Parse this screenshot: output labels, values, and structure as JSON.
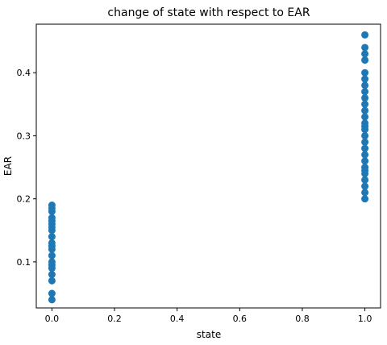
{
  "chart_data": {
    "type": "scatter",
    "title": "change of state with respect to EAR",
    "xlabel": "state",
    "ylabel": "EAR",
    "xlim": [
      -0.05,
      1.05
    ],
    "ylim": [
      0.027,
      0.477
    ],
    "xticks": [
      0.0,
      0.2,
      0.4,
      0.6,
      0.8,
      1.0
    ],
    "xtick_labels": [
      "0.0",
      "0.2",
      "0.4",
      "0.6",
      "0.8",
      "1.0"
    ],
    "yticks": [
      0.1,
      0.2,
      0.3,
      0.4
    ],
    "ytick_labels": [
      "0.1",
      "0.2",
      "0.3",
      "0.4"
    ],
    "grid": false,
    "marker_color": "#1f77b4",
    "series": [
      {
        "x": [
          0,
          0,
          0,
          0,
          0,
          0,
          0,
          0,
          0,
          0,
          0,
          0,
          0,
          0,
          0,
          0,
          0,
          0,
          0,
          0
        ],
        "y": [
          0.04,
          0.05,
          0.07,
          0.08,
          0.09,
          0.1,
          0.11,
          0.12,
          0.13,
          0.14,
          0.15,
          0.16,
          0.17,
          0.18,
          0.19,
          0.155,
          0.125,
          0.095,
          0.165,
          0.185
        ]
      },
      {
        "x": [
          1,
          1,
          1,
          1,
          1,
          1,
          1,
          1,
          1,
          1,
          1,
          1,
          1,
          1,
          1,
          1,
          1,
          1,
          1,
          1,
          1,
          1,
          1,
          1,
          1,
          1,
          1
        ],
        "y": [
          0.2,
          0.21,
          0.22,
          0.23,
          0.24,
          0.25,
          0.26,
          0.27,
          0.28,
          0.29,
          0.3,
          0.31,
          0.32,
          0.33,
          0.34,
          0.35,
          0.36,
          0.37,
          0.38,
          0.39,
          0.4,
          0.42,
          0.43,
          0.44,
          0.46,
          0.245,
          0.315
        ]
      }
    ]
  }
}
